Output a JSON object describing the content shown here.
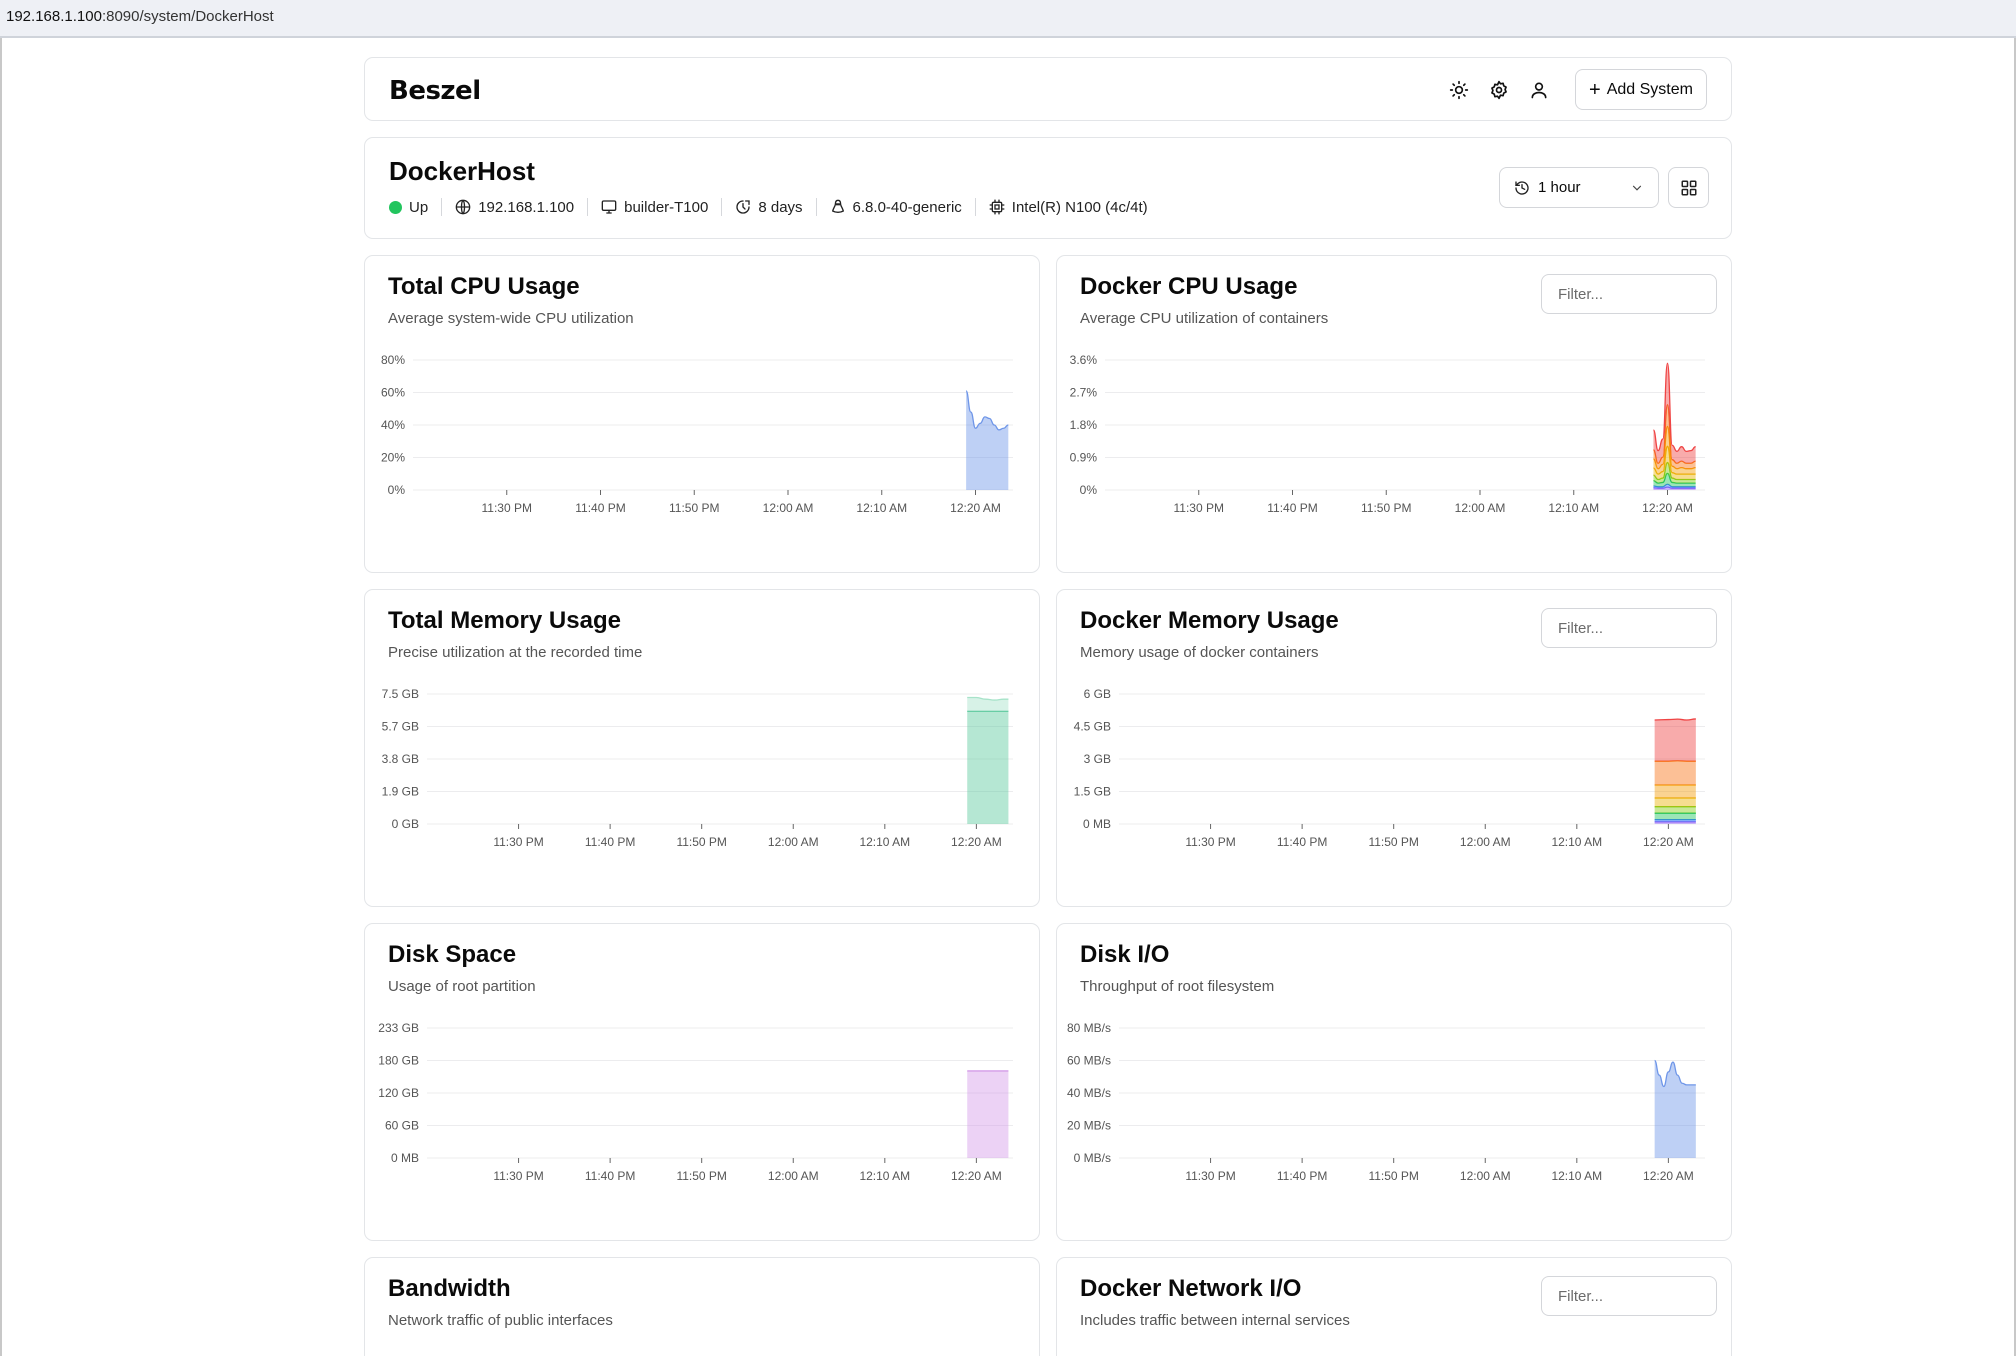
{
  "browser": {
    "url_host": "192.168.1.100",
    "url_rest": ":8090/system/DockerHost"
  },
  "nav": {
    "logo": "Beszel",
    "icons": [
      "sun-icon",
      "gear-icon",
      "user-icon"
    ],
    "add_label": "Add System"
  },
  "system": {
    "name": "DockerHost",
    "status": "Up",
    "ip": "192.168.1.100",
    "hostname": "builder-T100",
    "uptime": "8 days",
    "kernel": "6.8.0-40-generic",
    "cpu": "Intel(R) N100 (4c/4t)",
    "range": "1 hour",
    "colors": {
      "status": "#22c55e"
    }
  },
  "x_ticks": [
    "11:30 PM",
    "11:40 PM",
    "11:50 PM",
    "12:00 AM",
    "12:10 AM",
    "12:20 AM"
  ],
  "charts": {
    "total_cpu": {
      "title": "Total CPU Usage",
      "desc": "Average system-wide CPU utilization"
    },
    "docker_cpu": {
      "title": "Docker CPU Usage",
      "desc": "Average CPU utilization of containers",
      "filter_placeholder": "Filter..."
    },
    "total_mem": {
      "title": "Total Memory Usage",
      "desc": "Precise utilization at the recorded time"
    },
    "docker_mem": {
      "title": "Docker Memory Usage",
      "desc": "Memory usage of docker containers",
      "filter_placeholder": "Filter..."
    },
    "disk": {
      "title": "Disk Space",
      "desc": "Usage of root partition"
    },
    "disk_io": {
      "title": "Disk I/O",
      "desc": "Throughput of root filesystem"
    },
    "bandwidth": {
      "title": "Bandwidth",
      "desc": "Network traffic of public interfaces"
    },
    "docker_net": {
      "title": "Docker Network I/O",
      "desc": "Includes traffic between internal services",
      "filter_placeholder": "Filter..."
    }
  },
  "chart_data": [
    {
      "id": "total_cpu",
      "type": "area",
      "title": "Total CPU Usage",
      "y_ticks": [
        "0%",
        "20%",
        "40%",
        "60%",
        "80%"
      ],
      "ylim": [
        0,
        80
      ],
      "unit": "%",
      "color": "#6f96e8",
      "x_range": [
        "11:20 PM",
        "12:24 AM"
      ],
      "x": [
        "12:19 AM",
        "12:19:30 AM",
        "12:20 AM",
        "12:20:30 AM",
        "12:21 AM",
        "12:21:30 AM",
        "12:22 AM",
        "12:22:30 AM",
        "12:23 AM",
        "12:23:30 AM"
      ],
      "series": [
        {
          "values": [
            61,
            48,
            38,
            41,
            45,
            44,
            40,
            37,
            38,
            40
          ]
        }
      ]
    },
    {
      "id": "docker_cpu",
      "type": "area",
      "title": "Docker CPU Usage",
      "y_ticks": [
        "0%",
        "0.9%",
        "1.8%",
        "2.7%",
        "3.6%"
      ],
      "ylim": [
        0,
        3.6
      ],
      "unit": "%",
      "stacked": true,
      "x_range": [
        "11:20 PM",
        "12:24 AM"
      ],
      "x": [
        "12:18:30 AM",
        "12:19 AM",
        "12:19:30 AM",
        "12:20 AM",
        "12:20:30 AM",
        "12:21 AM",
        "12:21:30 AM",
        "12:22 AM",
        "12:22:30 AM",
        "12:23 AM"
      ],
      "series": [
        {
          "color": "#8b5cf6",
          "values": [
            0.06,
            0.05,
            0.05,
            0.08,
            0.05,
            0.05,
            0.05,
            0.05,
            0.05,
            0.05
          ]
        },
        {
          "color": "#3b82f6",
          "values": [
            0.05,
            0.04,
            0.04,
            0.08,
            0.04,
            0.04,
            0.04,
            0.04,
            0.04,
            0.04
          ]
        },
        {
          "color": "#22c55e",
          "values": [
            0.15,
            0.1,
            0.12,
            0.3,
            0.12,
            0.1,
            0.1,
            0.1,
            0.1,
            0.1
          ]
        },
        {
          "color": "#84cc16",
          "values": [
            0.15,
            0.1,
            0.12,
            0.3,
            0.12,
            0.1,
            0.1,
            0.1,
            0.1,
            0.1
          ]
        },
        {
          "color": "#eab308",
          "values": [
            0.2,
            0.15,
            0.18,
            0.45,
            0.15,
            0.15,
            0.15,
            0.15,
            0.15,
            0.15
          ]
        },
        {
          "color": "#f59e0b",
          "values": [
            0.25,
            0.15,
            0.2,
            0.55,
            0.18,
            0.15,
            0.18,
            0.15,
            0.15,
            0.18
          ]
        },
        {
          "color": "#f97316",
          "values": [
            0.25,
            0.15,
            0.2,
            0.6,
            0.18,
            0.15,
            0.18,
            0.15,
            0.15,
            0.18
          ]
        },
        {
          "color": "#ef4444",
          "values": [
            0.55,
            0.35,
            0.5,
            1.15,
            0.4,
            0.33,
            0.4,
            0.33,
            0.35,
            0.4
          ]
        }
      ]
    },
    {
      "id": "total_mem",
      "type": "area",
      "title": "Total Memory Usage",
      "y_ticks": [
        "0 GB",
        "1.9 GB",
        "3.8 GB",
        "5.7 GB",
        "7.5 GB"
      ],
      "ylim": [
        0,
        7.5
      ],
      "stacked": true,
      "x_range": [
        "11:20 PM",
        "12:24 AM"
      ],
      "x": [
        "12:19 AM",
        "12:20 AM",
        "12:21 AM",
        "12:22 AM",
        "12:23 AM",
        "12:23:30 AM"
      ],
      "series": [
        {
          "color": "#5cc99e",
          "values": [
            6.5,
            6.5,
            6.5,
            6.5,
            6.5,
            6.5
          ]
        },
        {
          "color": "#a7e3c9",
          "values": [
            0.8,
            0.8,
            0.7,
            0.65,
            0.7,
            0.7
          ]
        }
      ]
    },
    {
      "id": "docker_mem",
      "type": "area",
      "title": "Docker Memory Usage",
      "y_ticks": [
        "0 MB",
        "1.5 GB",
        "3 GB",
        "4.5 GB",
        "6 GB"
      ],
      "ylim": [
        0,
        6
      ],
      "stacked": true,
      "x_range": [
        "11:20 PM",
        "12:24 AM"
      ],
      "x": [
        "12:18:30 AM",
        "12:20 AM",
        "12:21 AM",
        "12:22 AM",
        "12:23 AM"
      ],
      "series": [
        {
          "color": "#8b5cf6",
          "values": [
            0.1,
            0.1,
            0.1,
            0.1,
            0.1
          ]
        },
        {
          "color": "#3b82f6",
          "values": [
            0.1,
            0.1,
            0.1,
            0.1,
            0.1
          ]
        },
        {
          "color": "#22c55e",
          "values": [
            0.3,
            0.3,
            0.3,
            0.3,
            0.3
          ]
        },
        {
          "color": "#84cc16",
          "values": [
            0.3,
            0.3,
            0.3,
            0.3,
            0.3
          ]
        },
        {
          "color": "#eab308",
          "values": [
            0.4,
            0.4,
            0.4,
            0.4,
            0.4
          ]
        },
        {
          "color": "#f59e0b",
          "values": [
            0.6,
            0.6,
            0.6,
            0.6,
            0.6
          ]
        },
        {
          "color": "#f97316",
          "values": [
            1.1,
            1.1,
            1.12,
            1.1,
            1.1
          ]
        },
        {
          "color": "#ef4444",
          "values": [
            1.9,
            1.92,
            1.92,
            1.9,
            1.95
          ]
        }
      ]
    },
    {
      "id": "disk",
      "type": "area",
      "title": "Disk Space",
      "y_ticks": [
        "0 MB",
        "60 GB",
        "120 GB",
        "180 GB",
        "233 GB"
      ],
      "ylim": [
        0,
        233
      ],
      "color": "#d49be8",
      "x_range": [
        "11:20 PM",
        "12:24 AM"
      ],
      "x": [
        "12:19 AM",
        "12:20 AM",
        "12:21 AM",
        "12:22 AM",
        "12:23 AM",
        "12:23:30 AM"
      ],
      "series": [
        {
          "values": [
            156,
            156,
            156,
            156,
            156,
            156
          ]
        }
      ]
    },
    {
      "id": "disk_io",
      "type": "area",
      "title": "Disk I/O",
      "y_ticks": [
        "0 MB/s",
        "20 MB/s",
        "40 MB/s",
        "60 MB/s",
        "80 MB/s"
      ],
      "ylim": [
        0,
        80
      ],
      "color": "#6f96e8",
      "x_range": [
        "11:20 PM",
        "12:24 AM"
      ],
      "x": [
        "12:18:30 AM",
        "12:19 AM",
        "12:19:30 AM",
        "12:20 AM",
        "12:20:30 AM",
        "12:21 AM",
        "12:21:30 AM",
        "12:22 AM",
        "12:23 AM"
      ],
      "series": [
        {
          "values": [
            60,
            51,
            44,
            53,
            59,
            51,
            46,
            45,
            45
          ]
        }
      ]
    }
  ]
}
